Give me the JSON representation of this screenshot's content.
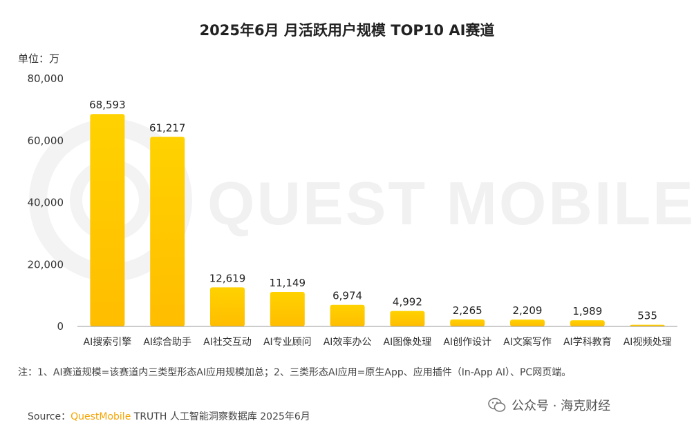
{
  "chart_data": {
    "type": "bar",
    "title": "2025年6月 月活跃用户规模 TOP10 AI赛道",
    "unit_label": "单位：万",
    "categories": [
      "AI搜索引擎",
      "AI综合助手",
      "AI社交互动",
      "AI专业顾问",
      "AI效率办公",
      "AI图像处理",
      "AI创作设计",
      "AI文案写作",
      "AI学科教育",
      "AI视频处理"
    ],
    "values": [
      68593,
      61217,
      12619,
      11149,
      6974,
      4992,
      2265,
      2209,
      1989,
      535
    ],
    "value_labels": [
      "68,593",
      "61,217",
      "12,619",
      "11,149",
      "6,974",
      "4,992",
      "2,265",
      "2,209",
      "1,989",
      "535"
    ],
    "yticks": [
      0,
      20000,
      40000,
      60000,
      80000
    ],
    "ytick_labels": [
      "0",
      "20,000",
      "40,000",
      "60,000",
      "80,000"
    ],
    "ylim": [
      0,
      80000
    ],
    "grid": false,
    "colors": {
      "bar_top": "#ffd200",
      "bar_bottom": "#ffbd00",
      "axis": "#999999"
    }
  },
  "watermark": "QUEST MOBILE",
  "note": "注：1、AI赛道规模=该赛道内三类型形态AI应用规模加总；2、三类形态AI应用=原生App、应用插件（In-App AI）、PC网页端。",
  "source": {
    "label": "Source：",
    "brand": "QuestMobile",
    "rest": " TRUTH 人工智能洞察数据库 2025年6月"
  },
  "wechat": {
    "icon": "wechat-icon",
    "text": "公众号 · 海克财经"
  }
}
